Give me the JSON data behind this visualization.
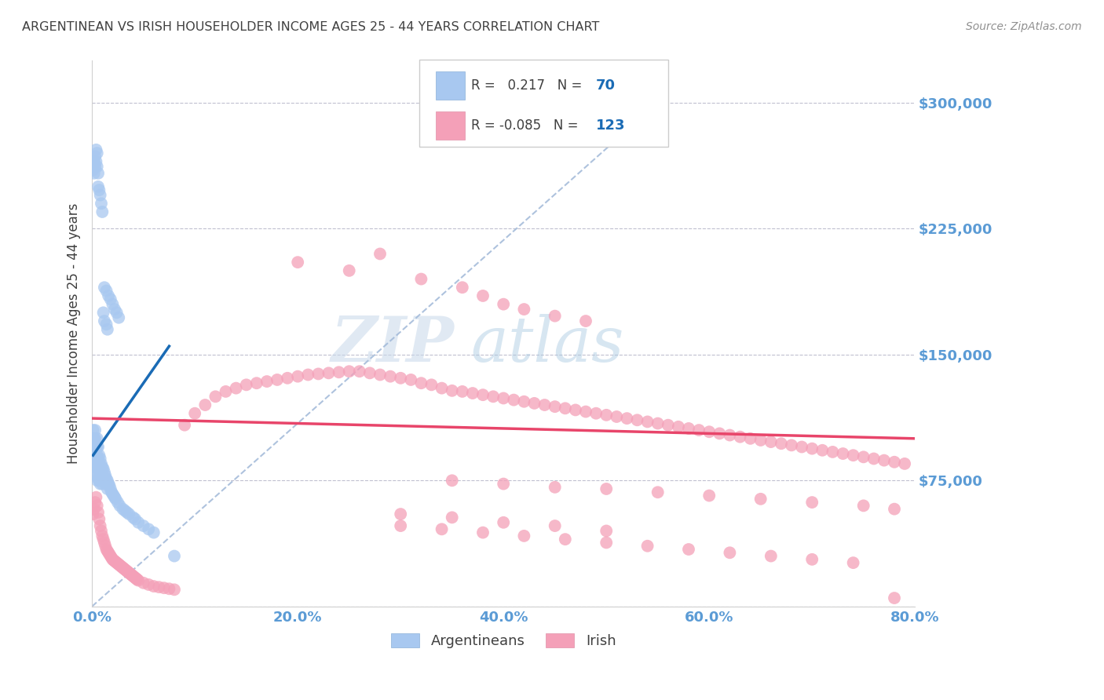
{
  "title": "ARGENTINEAN VS IRISH HOUSEHOLDER INCOME AGES 25 - 44 YEARS CORRELATION CHART",
  "source": "Source: ZipAtlas.com",
  "ylabel": "Householder Income Ages 25 - 44 years",
  "xlim": [
    0.0,
    0.8
  ],
  "ylim": [
    0,
    325000
  ],
  "yticks": [
    0,
    75000,
    150000,
    225000,
    300000
  ],
  "ytick_labels": [
    "",
    "$75,000",
    "$150,000",
    "$225,000",
    "$300,000"
  ],
  "xticks": [
    0.0,
    0.2,
    0.4,
    0.6,
    0.8
  ],
  "xtick_labels": [
    "0.0%",
    "20.0%",
    "40.0%",
    "60.0%",
    "80.0%"
  ],
  "legend_r_arg": "0.217",
  "legend_n_arg": "70",
  "legend_r_irish": "-0.085",
  "legend_n_irish": "123",
  "arg_color": "#a8c8f0",
  "irish_color": "#f4a0b8",
  "arg_line_color": "#1a6bb5",
  "irish_line_color": "#e8456a",
  "diag_line_color": "#a0b8d8",
  "watermark_zip": "ZIP",
  "watermark_atlas": "atlas",
  "title_color": "#404040",
  "axis_label_color": "#404040",
  "tick_color": "#5b9bd5",
  "grid_color": "#c0c0d0",
  "arg_scatter_x": [
    0.001,
    0.001,
    0.001,
    0.002,
    0.002,
    0.002,
    0.002,
    0.003,
    0.003,
    0.003,
    0.003,
    0.003,
    0.004,
    0.004,
    0.004,
    0.004,
    0.005,
    0.005,
    0.005,
    0.005,
    0.005,
    0.005,
    0.006,
    0.006,
    0.006,
    0.006,
    0.007,
    0.007,
    0.007,
    0.007,
    0.008,
    0.008,
    0.008,
    0.008,
    0.009,
    0.009,
    0.009,
    0.01,
    0.01,
    0.01,
    0.011,
    0.011,
    0.012,
    0.012,
    0.013,
    0.013,
    0.014,
    0.015,
    0.015,
    0.016,
    0.017,
    0.018,
    0.019,
    0.02,
    0.021,
    0.022,
    0.023,
    0.025,
    0.027,
    0.03,
    0.032,
    0.034,
    0.036,
    0.04,
    0.042,
    0.045,
    0.05,
    0.055,
    0.06,
    0.08
  ],
  "arg_scatter_y": [
    105000,
    100000,
    96000,
    100000,
    98000,
    92000,
    88000,
    105000,
    100000,
    95000,
    90000,
    85000,
    95000,
    88000,
    83000,
    78000,
    100000,
    95000,
    90000,
    85000,
    80000,
    75000,
    95000,
    88000,
    82000,
    76000,
    90000,
    85000,
    80000,
    75000,
    88000,
    83000,
    78000,
    73000,
    85000,
    80000,
    75000,
    83000,
    78000,
    73000,
    82000,
    77000,
    80000,
    75000,
    78000,
    73000,
    76000,
    75000,
    70000,
    73000,
    72000,
    70000,
    68000,
    67000,
    66000,
    65000,
    64000,
    62000,
    60000,
    58000,
    57000,
    56000,
    55000,
    53000,
    52000,
    50000,
    48000,
    46000,
    44000,
    30000
  ],
  "arg_scatter_x2": [
    0.001,
    0.001,
    0.002,
    0.002,
    0.003,
    0.003,
    0.004,
    0.004,
    0.005,
    0.005,
    0.006,
    0.006,
    0.007,
    0.008,
    0.009,
    0.01,
    0.011,
    0.012,
    0.014,
    0.015,
    0.012,
    0.014,
    0.016,
    0.018,
    0.02,
    0.022,
    0.024,
    0.026
  ],
  "arg_scatter_y2": [
    265000,
    260000,
    265000,
    258000,
    268000,
    262000,
    272000,
    265000,
    270000,
    262000,
    258000,
    250000,
    248000,
    245000,
    240000,
    235000,
    175000,
    170000,
    168000,
    165000,
    190000,
    188000,
    185000,
    183000,
    180000,
    177000,
    175000,
    172000
  ],
  "irish_scatter_x": [
    0.001,
    0.002,
    0.003,
    0.004,
    0.005,
    0.006,
    0.007,
    0.008,
    0.009,
    0.01,
    0.011,
    0.012,
    0.013,
    0.014,
    0.015,
    0.016,
    0.017,
    0.018,
    0.019,
    0.02,
    0.021,
    0.022,
    0.023,
    0.024,
    0.025,
    0.026,
    0.027,
    0.028,
    0.029,
    0.03,
    0.031,
    0.032,
    0.033,
    0.034,
    0.035,
    0.036,
    0.037,
    0.038,
    0.039,
    0.04,
    0.041,
    0.042,
    0.043,
    0.044,
    0.045,
    0.05,
    0.055,
    0.06,
    0.065,
    0.07,
    0.075,
    0.08,
    0.09,
    0.1,
    0.11,
    0.12,
    0.13,
    0.14,
    0.15,
    0.16,
    0.17,
    0.18,
    0.19,
    0.2,
    0.21,
    0.22,
    0.23,
    0.24,
    0.25,
    0.26,
    0.27,
    0.28,
    0.29,
    0.3,
    0.31,
    0.32,
    0.33,
    0.34,
    0.35,
    0.36,
    0.37,
    0.38,
    0.39,
    0.4,
    0.41,
    0.42,
    0.43,
    0.44,
    0.45,
    0.46,
    0.47,
    0.48,
    0.49,
    0.5,
    0.51,
    0.52,
    0.53,
    0.54,
    0.55,
    0.56,
    0.57,
    0.58,
    0.59,
    0.6,
    0.61,
    0.62,
    0.63,
    0.64,
    0.65,
    0.66,
    0.67,
    0.68,
    0.69,
    0.7,
    0.71,
    0.72,
    0.73,
    0.74,
    0.75,
    0.76,
    0.77,
    0.78,
    0.79
  ],
  "irish_scatter_y": [
    55000,
    58000,
    62000,
    65000,
    60000,
    56000,
    52000,
    48000,
    45000,
    42000,
    40000,
    38000,
    36000,
    34000,
    33000,
    32000,
    31000,
    30000,
    29000,
    28000,
    27500,
    27000,
    26500,
    26000,
    25500,
    25000,
    24500,
    24000,
    23500,
    23000,
    22500,
    22000,
    21500,
    21000,
    20500,
    20000,
    19500,
    19000,
    18500,
    18000,
    17500,
    17000,
    16500,
    16000,
    15500,
    14000,
    13000,
    12000,
    11500,
    11000,
    10500,
    10000,
    108000,
    115000,
    120000,
    125000,
    128000,
    130000,
    132000,
    133000,
    134000,
    135000,
    136000,
    137000,
    138000,
    138500,
    139000,
    139500,
    140000,
    140000,
    139000,
    138000,
    137000,
    136000,
    135000,
    133000,
    132000,
    130000,
    128500,
    128000,
    127000,
    126000,
    125000,
    124000,
    123000,
    122000,
    121000,
    120000,
    119000,
    118000,
    117000,
    116000,
    115000,
    114000,
    113000,
    112000,
    111000,
    110000,
    109000,
    108000,
    107000,
    106000,
    105000,
    104000,
    103000,
    102000,
    101000,
    100000,
    99000,
    98000,
    97000,
    96000,
    95000,
    94000,
    93000,
    92000,
    91000,
    90000,
    89000,
    88000,
    87000,
    86000,
    85000
  ],
  "irish_extra_x": [
    0.2,
    0.25,
    0.28,
    0.32,
    0.36,
    0.38,
    0.4,
    0.42,
    0.45,
    0.48,
    0.35,
    0.4,
    0.45,
    0.5,
    0.55,
    0.6,
    0.65,
    0.7,
    0.75,
    0.78,
    0.3,
    0.35,
    0.4,
    0.45,
    0.5,
    0.3,
    0.34,
    0.38,
    0.42,
    0.46,
    0.5,
    0.54,
    0.58,
    0.62,
    0.66,
    0.7,
    0.74,
    0.78
  ],
  "irish_extra_y": [
    205000,
    200000,
    210000,
    195000,
    190000,
    185000,
    180000,
    177000,
    173000,
    170000,
    75000,
    73000,
    71000,
    70000,
    68000,
    66000,
    64000,
    62000,
    60000,
    58000,
    55000,
    53000,
    50000,
    48000,
    45000,
    48000,
    46000,
    44000,
    42000,
    40000,
    38000,
    36000,
    34000,
    32000,
    30000,
    28000,
    26000,
    5000
  ]
}
